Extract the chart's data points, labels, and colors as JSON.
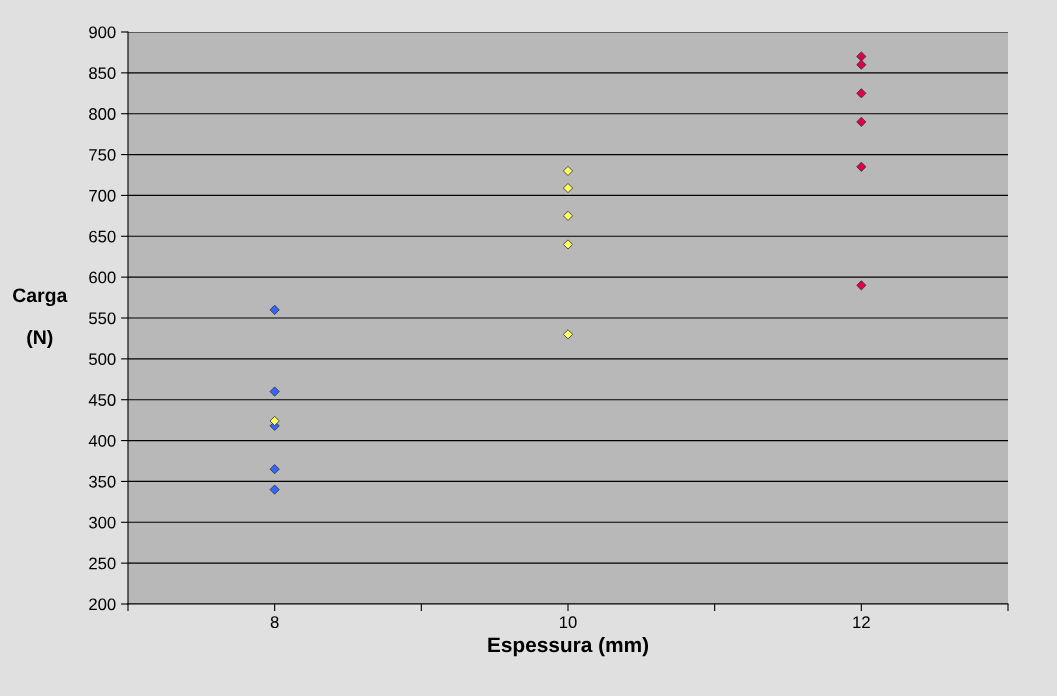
{
  "chart_data": {
    "type": "scatter",
    "xlabel": "Espessura (mm)",
    "ylabel": "Carga\n\n(N)",
    "xlim": [
      7,
      13
    ],
    "xticks": [
      {
        "value": 7,
        "label": null
      },
      8,
      {
        "value": 9,
        "label": null
      },
      10,
      {
        "value": 11,
        "label": null
      },
      12,
      {
        "value": 13,
        "label": null
      }
    ],
    "ylim": [
      200,
      900
    ],
    "yticks": [
      200,
      250,
      300,
      350,
      400,
      450,
      500,
      550,
      600,
      650,
      700,
      750,
      800,
      850,
      900
    ],
    "grid": "y",
    "legend": false,
    "marker": "diamond",
    "series": [
      {
        "color": "#3366ff",
        "x": [
          8,
          8,
          8,
          8,
          8
        ],
        "values": [
          560,
          460,
          418,
          365,
          340
        ]
      },
      {
        "color": "#ffff66",
        "x": [
          8,
          10,
          10,
          10,
          10,
          10
        ],
        "values": [
          424,
          730,
          709,
          675,
          640,
          530
        ]
      },
      {
        "color": "#e0004a",
        "x": [
          12,
          12,
          12,
          12,
          12,
          12
        ],
        "values": [
          870,
          860,
          825,
          790,
          735,
          590
        ]
      }
    ]
  }
}
